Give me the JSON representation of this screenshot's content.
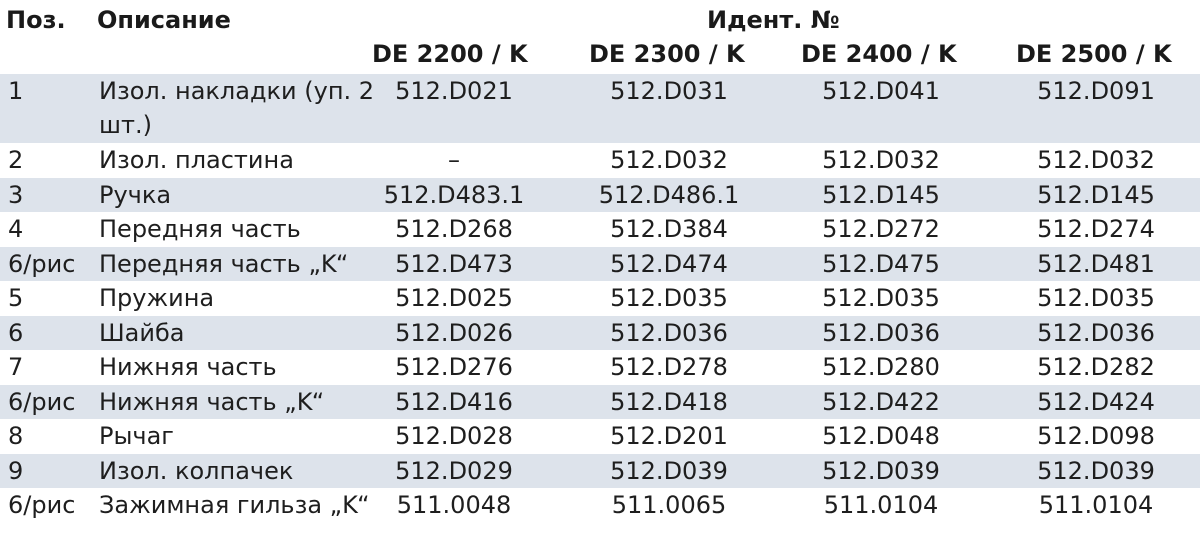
{
  "header": {
    "pos": "Поз.",
    "description": "Описание",
    "ident": "Идент. №",
    "models": [
      "DE 2200 / K",
      "DE 2300 / K",
      "DE 2400 / K",
      "DE 2500 / K"
    ]
  },
  "colors": {
    "row_shade": "#dde3eb",
    "text": "#1e1e1e"
  },
  "rows": [
    {
      "pos": "1",
      "desc": "Изол. накладки (уп. 2 шт.)",
      "values": [
        "512.D021",
        "512.D031",
        "512.D041",
        "512.D091"
      ]
    },
    {
      "pos": "2",
      "desc": "Изол. пластина",
      "values": [
        "–",
        "512.D032",
        "512.D032",
        "512.D032"
      ]
    },
    {
      "pos": "3",
      "desc": "Ручка",
      "values": [
        "512.D483.1",
        "512.D486.1",
        "512.D145",
        "512.D145"
      ]
    },
    {
      "pos": "4",
      "desc": "Передняя часть",
      "values": [
        "512.D268",
        "512.D384",
        "512.D272",
        "512.D274"
      ]
    },
    {
      "pos": "6/рис",
      "desc": "Передняя часть „K“",
      "values": [
        "512.D473",
        "512.D474",
        "512.D475",
        "512.D481"
      ]
    },
    {
      "pos": "5",
      "desc": "Пружина",
      "values": [
        "512.D025",
        "512.D035",
        "512.D035",
        "512.D035"
      ]
    },
    {
      "pos": "6",
      "desc": "Шайба",
      "values": [
        "512.D026",
        "512.D036",
        "512.D036",
        "512.D036"
      ]
    },
    {
      "pos": "7",
      "desc": "Нижняя часть",
      "values": [
        "512.D276",
        "512.D278",
        "512.D280",
        "512.D282"
      ]
    },
    {
      "pos": "6/рис",
      "desc": "Нижняя часть „K“",
      "values": [
        "512.D416",
        "512.D418",
        "512.D422",
        "512.D424"
      ]
    },
    {
      "pos": "8",
      "desc": "Рычаг",
      "values": [
        "512.D028",
        "512.D201",
        "512.D048",
        "512.D098"
      ]
    },
    {
      "pos": "9",
      "desc": "Изол. колпачек",
      "values": [
        "512.D029",
        "512.D039",
        "512.D039",
        "512.D039"
      ]
    },
    {
      "pos": "6/рис",
      "desc": "Зажимная гильза „K“",
      "values": [
        "511.0048",
        "511.0065",
        "511.0104",
        "511.0104"
      ]
    }
  ]
}
